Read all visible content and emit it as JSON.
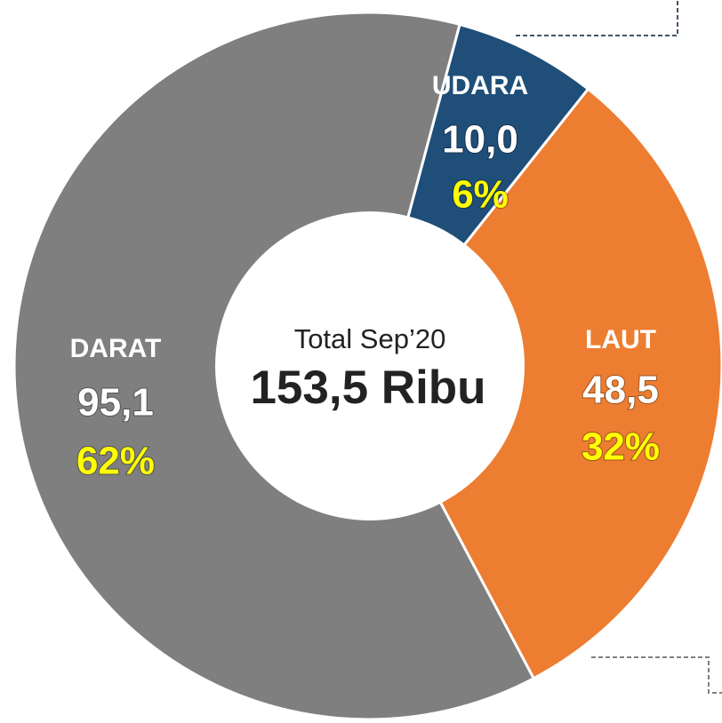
{
  "chart_data": {
    "type": "donut",
    "categories": [
      "UDARA",
      "LAUT",
      "DARAT"
    ],
    "values": [
      10.0,
      48.5,
      95.1
    ],
    "value_labels": [
      "10,0",
      "48,5",
      "95,1"
    ],
    "percents": [
      6,
      32,
      62
    ],
    "percent_labels": [
      "6%",
      "32%",
      "62%"
    ],
    "colors": [
      "#1f4e79",
      "#ed7d31",
      "#7f7f7f"
    ],
    "center_title": "Total Sep’20",
    "center_value": "153,5 Ribu"
  }
}
